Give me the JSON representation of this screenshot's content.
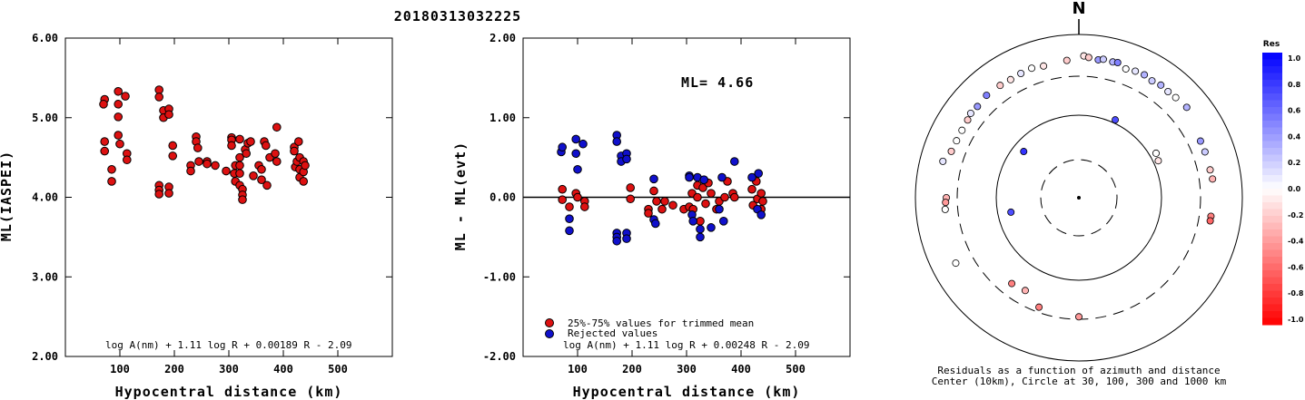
{
  "event_id": "20180313032225",
  "chart_data": [
    {
      "type": "scatter",
      "title": "",
      "ylabel": "ML(IASPEI)",
      "xlabel": "Hypocentral distance (km)",
      "xlim": [
        0,
        600
      ],
      "ylim": [
        2.0,
        6.0
      ],
      "x_ticks": [
        "100",
        "200",
        "300",
        "400",
        "500"
      ],
      "y_ticks": [
        "2.00",
        "3.00",
        "4.00",
        "5.00",
        "6.00"
      ],
      "formula": "log A(nm) + 1.11 log R + 0.00189 R - 2.09",
      "series": [
        {
          "color": "#dd1111",
          "points": [
            [
              72,
              5.23
            ],
            [
              70,
              5.17
            ],
            [
              72,
              4.7
            ],
            [
              72,
              4.58
            ],
            [
              85,
              4.35
            ],
            [
              85,
              4.2
            ],
            [
              97,
              5.33
            ],
            [
              97,
              5.17
            ],
            [
              97,
              5.01
            ],
            [
              97,
              4.78
            ],
            [
              100,
              4.67
            ],
            [
              110,
              5.27
            ],
            [
              113,
              4.55
            ],
            [
              113,
              4.47
            ],
            [
              172,
              5.35
            ],
            [
              172,
              5.26
            ],
            [
              172,
              4.15
            ],
            [
              172,
              4.09
            ],
            [
              172,
              4.04
            ],
            [
              180,
              5.09
            ],
            [
              180,
              5.0
            ],
            [
              190,
              5.11
            ],
            [
              190,
              5.04
            ],
            [
              190,
              4.13
            ],
            [
              190,
              4.05
            ],
            [
              197,
              4.65
            ],
            [
              197,
              4.52
            ],
            [
              230,
              4.4
            ],
            [
              230,
              4.33
            ],
            [
              240,
              4.76
            ],
            [
              240,
              4.7
            ],
            [
              243,
              4.62
            ],
            [
              245,
              4.45
            ],
            [
              260,
              4.45
            ],
            [
              260,
              4.42
            ],
            [
              275,
              4.4
            ],
            [
              295,
              4.33
            ],
            [
              305,
              4.75
            ],
            [
              305,
              4.72
            ],
            [
              305,
              4.65
            ],
            [
              310,
              4.3
            ],
            [
              312,
              4.4
            ],
            [
              312,
              4.2
            ],
            [
              320,
              4.73
            ],
            [
              320,
              4.5
            ],
            [
              320,
              4.4
            ],
            [
              320,
              4.3
            ],
            [
              320,
              4.15
            ],
            [
              325,
              4.1
            ],
            [
              325,
              4.03
            ],
            [
              325,
              3.97
            ],
            [
              330,
              4.6
            ],
            [
              332,
              4.55
            ],
            [
              335,
              4.68
            ],
            [
              340,
              4.7
            ],
            [
              345,
              4.27
            ],
            [
              355,
              4.4
            ],
            [
              360,
              4.35
            ],
            [
              360,
              4.22
            ],
            [
              365,
              4.7
            ],
            [
              368,
              4.65
            ],
            [
              370,
              4.15
            ],
            [
              375,
              4.5
            ],
            [
              385,
              4.55
            ],
            [
              388,
              4.88
            ],
            [
              388,
              4.45
            ],
            [
              420,
              4.63
            ],
            [
              420,
              4.58
            ],
            [
              422,
              4.38
            ],
            [
              425,
              4.45
            ],
            [
              428,
              4.7
            ],
            [
              430,
              4.5
            ],
            [
              430,
              4.35
            ],
            [
              430,
              4.25
            ],
            [
              437,
              4.45
            ],
            [
              437,
              4.32
            ],
            [
              437,
              4.2
            ],
            [
              440,
              4.4
            ]
          ]
        }
      ]
    },
    {
      "type": "scatter",
      "title": "",
      "ylabel": "ML - ML(evt)",
      "xlabel": "Hypocentral distance (km)",
      "xlim": [
        0,
        600
      ],
      "ylim": [
        -2.0,
        2.0
      ],
      "x_ticks": [
        "100",
        "200",
        "300",
        "400",
        "500"
      ],
      "y_ticks": [
        "-2.00",
        "-1.00",
        "0.00",
        "1.00",
        "2.00"
      ],
      "hline": 0.0,
      "annotation": "ML= 4.66",
      "formula": "log A(nm) + 1.11 log R + 0.00248 R - 2.09",
      "legend": [
        "25%-75% values for trimmed mean",
        "Rejected values"
      ],
      "series": [
        {
          "name": "25%-75% values for trimmed mean",
          "color": "#dd1111",
          "points": [
            [
              72,
              0.1
            ],
            [
              72,
              -0.03
            ],
            [
              85,
              -0.12
            ],
            [
              97,
              0.05
            ],
            [
              100,
              0.0
            ],
            [
              113,
              -0.05
            ],
            [
              113,
              -0.12
            ],
            [
              197,
              0.12
            ],
            [
              197,
              -0.02
            ],
            [
              230,
              -0.15
            ],
            [
              230,
              -0.2
            ],
            [
              240,
              0.08
            ],
            [
              245,
              -0.05
            ],
            [
              255,
              -0.15
            ],
            [
              260,
              -0.05
            ],
            [
              275,
              -0.1
            ],
            [
              295,
              -0.15
            ],
            [
              305,
              -0.12
            ],
            [
              310,
              0.05
            ],
            [
              312,
              -0.15
            ],
            [
              320,
              0.15
            ],
            [
              320,
              0.0
            ],
            [
              325,
              -0.3
            ],
            [
              330,
              0.12
            ],
            [
              335,
              -0.08
            ],
            [
              340,
              0.18
            ],
            [
              345,
              0.05
            ],
            [
              355,
              -0.15
            ],
            [
              360,
              -0.05
            ],
            [
              370,
              0.0
            ],
            [
              375,
              0.2
            ],
            [
              385,
              0.05
            ],
            [
              388,
              0.0
            ],
            [
              420,
              0.1
            ],
            [
              422,
              -0.1
            ],
            [
              428,
              0.2
            ],
            [
              430,
              -0.02
            ],
            [
              437,
              0.05
            ],
            [
              437,
              -0.15
            ],
            [
              440,
              -0.05
            ]
          ]
        },
        {
          "name": "Rejected values",
          "color": "#1010cc",
          "points": [
            [
              70,
              0.57
            ],
            [
              72,
              0.63
            ],
            [
              85,
              -0.27
            ],
            [
              85,
              -0.42
            ],
            [
              97,
              0.73
            ],
            [
              97,
              0.55
            ],
            [
              100,
              0.35
            ],
            [
              110,
              0.67
            ],
            [
              172,
              0.78
            ],
            [
              172,
              0.7
            ],
            [
              172,
              -0.45
            ],
            [
              172,
              -0.5
            ],
            [
              172,
              -0.55
            ],
            [
              180,
              0.52
            ],
            [
              180,
              0.45
            ],
            [
              190,
              0.55
            ],
            [
              190,
              0.48
            ],
            [
              190,
              -0.45
            ],
            [
              190,
              -0.52
            ],
            [
              240,
              0.23
            ],
            [
              240,
              -0.28
            ],
            [
              243,
              -0.33
            ],
            [
              305,
              0.27
            ],
            [
              305,
              0.25
            ],
            [
              310,
              -0.22
            ],
            [
              312,
              -0.3
            ],
            [
              320,
              0.25
            ],
            [
              325,
              -0.4
            ],
            [
              325,
              -0.5
            ],
            [
              332,
              0.22
            ],
            [
              345,
              -0.38
            ],
            [
              360,
              -0.15
            ],
            [
              365,
              0.25
            ],
            [
              368,
              -0.3
            ],
            [
              388,
              0.45
            ],
            [
              420,
              0.25
            ],
            [
              430,
              -0.15
            ],
            [
              432,
              0.3
            ],
            [
              437,
              -0.22
            ]
          ]
        }
      ]
    },
    {
      "type": "scatter",
      "title": "N",
      "caption_line1": "Residuals as a function of azimuth and distance",
      "caption_line2": "Center (10km), Circle at 30, 100, 300 and 1000 km",
      "colorbar_title": "Res",
      "colorbar_ticks": [
        "1.0",
        "0.8",
        "0.6",
        "0.4",
        "0.2",
        "0.0",
        "-0.2",
        "-0.4",
        "-0.6",
        "-0.8",
        "-1.0"
      ],
      "circles_km": [
        30,
        100,
        300,
        1000
      ],
      "stations": [
        [
          1,
          340,
          0.0
        ],
        [
          2,
          335,
          0.1
        ],
        [
          3,
          330,
          -0.1
        ],
        [
          4,
          325,
          -0.2
        ],
        [
          5,
          318,
          0.5
        ],
        [
          6,
          312,
          0.4
        ],
        [
          7,
          308,
          0.1
        ],
        [
          8,
          305,
          -0.2
        ],
        [
          9,
          300,
          0.0
        ],
        [
          10,
          295,
          0.0
        ],
        [
          11,
          290,
          -0.2
        ],
        [
          12,
          285,
          0.1
        ],
        [
          13,
          270,
          -0.3
        ],
        [
          14,
          268,
          -0.4
        ],
        [
          15,
          265,
          0.0
        ],
        [
          16,
          242,
          0.0
        ],
        [
          17,
          345,
          -0.1
        ],
        [
          18,
          355,
          -0.2
        ],
        [
          19,
          2,
          -0.1
        ],
        [
          20,
          4,
          -0.2
        ],
        [
          21,
          8,
          0.4
        ],
        [
          22,
          10,
          0.2
        ],
        [
          23,
          14,
          0.3
        ],
        [
          24,
          16,
          0.5
        ],
        [
          25,
          20,
          0.0
        ],
        [
          26,
          24,
          0.1
        ],
        [
          27,
          28,
          0.3
        ],
        [
          28,
          32,
          0.2
        ],
        [
          29,
          36,
          0.3
        ],
        [
          30,
          40,
          0.1
        ],
        [
          31,
          44,
          0.0
        ],
        [
          32,
          50,
          0.3
        ],
        [
          33,
          65,
          0.4
        ],
        [
          34,
          70,
          0.2
        ],
        [
          35,
          78,
          -0.2
        ],
        [
          36,
          82,
          -0.3
        ],
        [
          37,
          98,
          -0.5
        ],
        [
          38,
          100,
          -0.6
        ],
        [
          39,
          210,
          -0.3
        ],
        [
          40,
          218,
          -0.5
        ],
        [
          41,
          200,
          -0.5
        ],
        [
          42,
          180,
          -0.4
        ],
        [
          43,
          60,
          0.0
        ],
        [
          44,
          65,
          -0.1
        ],
        [
          45,
          25,
          0.7
        ],
        [
          46,
          310,
          0.8
        ],
        [
          47,
          258,
          0.7
        ]
      ]
    }
  ]
}
